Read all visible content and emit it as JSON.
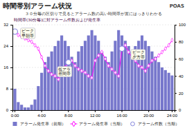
{
  "chart_data": {
    "type": "bar",
    "title": "時間帯別アラーム状況",
    "subtitle": "３０分毎の区切りで見るとアラーム数の高い時間帯が置にはっきりわかる",
    "legend_title": "時間帯(30分毎)に対アラーム件数および発生率",
    "categories": [
      "0:00",
      null,
      null,
      null,
      null,
      null,
      null,
      null,
      "4:00",
      null,
      null,
      null,
      null,
      null,
      null,
      null,
      "8:00",
      null,
      null,
      null,
      null,
      null,
      null,
      null,
      "12:00",
      null,
      null,
      null,
      null,
      null,
      null,
      null,
      "16:00",
      null,
      null,
      null,
      null,
      null,
      null,
      null,
      "20:00",
      null,
      null,
      null,
      null,
      null,
      null,
      "24:00"
    ],
    "series": [
      {
        "name": "アラーム発生率（前期）",
        "type": "bar",
        "color": "#7777cc",
        "values": [
          8,
          3,
          2,
          1,
          1,
          2,
          4,
          9,
          14,
          18,
          20,
          22,
          24,
          26,
          28,
          26,
          24,
          20,
          18,
          22,
          24,
          26,
          28,
          30,
          28,
          26,
          22,
          20,
          18,
          22,
          26,
          30,
          28,
          26,
          24,
          22,
          24,
          26,
          28,
          26,
          24,
          22,
          20,
          18,
          16,
          15,
          14,
          13
        ]
      },
      {
        "name": "アラーム発生率（当期）",
        "type": "line",
        "axis": "y2",
        "color": "#ff00ff",
        "marker": "diamond",
        "values": [
          92,
          88,
          86,
          84,
          82,
          80,
          76,
          72,
          62,
          52,
          46,
          42,
          40,
          36,
          44,
          50,
          56,
          58,
          52,
          48,
          46,
          44,
          40,
          38,
          58,
          64,
          68,
          60,
          52,
          48,
          44,
          40,
          72,
          76,
          68,
          62,
          58,
          52,
          50,
          46,
          52,
          58,
          60,
          64,
          68,
          72,
          76,
          82
        ]
      },
      {
        "name": "アラーム件数（当期）",
        "type": "scatter",
        "axis": "y2",
        "color": "#8888dd",
        "marker": "circle",
        "values": [
          92,
          null,
          null,
          null,
          null,
          null,
          null,
          null,
          null,
          null,
          null,
          null,
          null,
          null,
          null,
          null,
          56,
          null,
          null,
          null,
          null,
          null,
          null,
          null,
          null,
          null,
          null,
          null,
          null,
          null,
          null,
          null,
          72,
          null,
          null,
          null,
          null,
          null,
          null,
          null,
          null,
          null,
          null,
          null,
          null,
          null,
          null,
          null
        ]
      }
    ],
    "ylim": [
      0,
      32
    ],
    "yticks": [
      0,
      8,
      16,
      24,
      32
    ],
    "y2lim": [
      0,
      100
    ],
    "y2ticks": [
      0,
      20,
      40,
      60,
      80,
      100
    ],
    "grid": true,
    "legend": "bottom",
    "annotations": [
      {
        "text": "ピーク\n早朝帯",
        "x": 2,
        "y": 90
      },
      {
        "text": "低アラ\n昼間帯",
        "x": 13,
        "y": 45
      },
      {
        "text": "ピーク\n夕方帯",
        "x": 35,
        "y": 65
      },
      {
        "text": "POAS"
      }
    ]
  }
}
